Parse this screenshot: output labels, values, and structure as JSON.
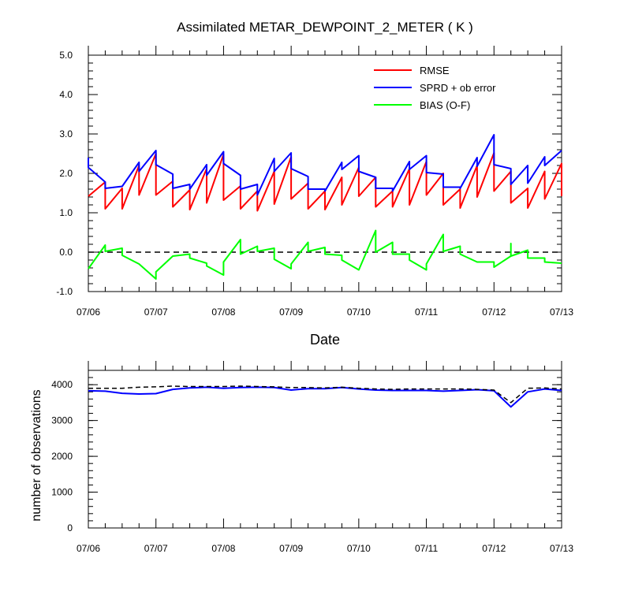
{
  "chart_data": [
    {
      "type": "line",
      "title": "Assimilated METAR_DEWPOINT_2_METER ( K )",
      "xlabel": "Date",
      "ylabel": "",
      "x_tick_labels": [
        "07/06",
        "07/07",
        "07/08",
        "07/09",
        "07/10",
        "07/11",
        "07/12",
        "07/13"
      ],
      "xlim": [
        0,
        7
      ],
      "ylim": [
        -1.0,
        5.0
      ],
      "y_tick_labels": [
        "-1.0",
        "0.0",
        "1.0",
        "2.0",
        "3.0",
        "4.0",
        "5.0"
      ],
      "reference_line": 0.0,
      "legend_position": "top-right",
      "series": [
        {
          "name": "RMSE",
          "color": "#ff0000",
          "points": [
            [
              0.0,
              1.42
            ],
            [
              0.25,
              1.78
            ],
            [
              0.25,
              1.1
            ],
            [
              0.5,
              1.62
            ],
            [
              0.5,
              1.1
            ],
            [
              0.75,
              2.2
            ],
            [
              0.75,
              1.45
            ],
            [
              1.0,
              2.5
            ],
            [
              1.0,
              1.45
            ],
            [
              1.25,
              1.8
            ],
            [
              1.25,
              1.15
            ],
            [
              1.5,
              1.58
            ],
            [
              1.5,
              1.08
            ],
            [
              1.75,
              2.12
            ],
            [
              1.75,
              1.25
            ],
            [
              2.0,
              2.48
            ],
            [
              2.0,
              1.32
            ],
            [
              2.25,
              1.68
            ],
            [
              2.25,
              1.1
            ],
            [
              2.5,
              1.55
            ],
            [
              2.5,
              1.05
            ],
            [
              2.75,
              2.05
            ],
            [
              2.75,
              1.22
            ],
            [
              3.0,
              2.42
            ],
            [
              3.0,
              1.35
            ],
            [
              3.25,
              1.75
            ],
            [
              3.25,
              1.1
            ],
            [
              3.5,
              1.55
            ],
            [
              3.5,
              1.08
            ],
            [
              3.75,
              1.9
            ],
            [
              3.75,
              1.2
            ],
            [
              4.0,
              2.15
            ],
            [
              4.0,
              1.42
            ],
            [
              4.25,
              1.9
            ],
            [
              4.25,
              1.15
            ],
            [
              4.5,
              1.55
            ],
            [
              4.5,
              1.15
            ],
            [
              4.75,
              2.12
            ],
            [
              4.75,
              1.2
            ],
            [
              5.0,
              2.3
            ],
            [
              5.0,
              1.45
            ],
            [
              5.25,
              2.0
            ],
            [
              5.25,
              1.2
            ],
            [
              5.5,
              1.6
            ],
            [
              5.5,
              1.12
            ],
            [
              5.75,
              2.2
            ],
            [
              5.75,
              1.4
            ],
            [
              6.0,
              2.52
            ],
            [
              6.0,
              1.55
            ],
            [
              6.25,
              2.05
            ],
            [
              6.25,
              1.25
            ],
            [
              6.5,
              1.62
            ],
            [
              6.5,
              1.12
            ],
            [
              6.75,
              2.05
            ],
            [
              6.75,
              1.35
            ],
            [
              7.0,
              2.25
            ],
            [
              7.0,
              1.42
            ]
          ]
        },
        {
          "name": "SPRD + ob error",
          "color": "#0000ff",
          "points": [
            [
              0.0,
              2.4
            ],
            [
              0.0,
              2.15
            ],
            [
              0.25,
              1.78
            ],
            [
              0.25,
              1.62
            ],
            [
              0.5,
              1.67
            ],
            [
              0.75,
              2.28
            ],
            [
              0.75,
              2.05
            ],
            [
              1.0,
              2.58
            ],
            [
              1.0,
              2.22
            ],
            [
              1.25,
              1.98
            ],
            [
              1.25,
              1.62
            ],
            [
              1.5,
              1.72
            ],
            [
              1.5,
              1.6
            ],
            [
              1.75,
              2.22
            ],
            [
              1.75,
              1.95
            ],
            [
              2.0,
              2.55
            ],
            [
              2.0,
              2.25
            ],
            [
              2.25,
              1.95
            ],
            [
              2.25,
              1.6
            ],
            [
              2.5,
              1.72
            ],
            [
              2.5,
              1.45
            ],
            [
              2.75,
              2.38
            ],
            [
              2.75,
              2.05
            ],
            [
              3.0,
              2.52
            ],
            [
              3.0,
              2.12
            ],
            [
              3.25,
              1.92
            ],
            [
              3.25,
              1.6
            ],
            [
              3.5,
              1.6
            ],
            [
              3.5,
              1.55
            ],
            [
              3.75,
              2.28
            ],
            [
              3.75,
              2.1
            ],
            [
              4.0,
              2.45
            ],
            [
              4.0,
              2.05
            ],
            [
              4.25,
              1.9
            ],
            [
              4.25,
              1.62
            ],
            [
              4.5,
              1.62
            ],
            [
              4.5,
              1.55
            ],
            [
              4.75,
              2.3
            ],
            [
              4.75,
              2.1
            ],
            [
              5.0,
              2.45
            ],
            [
              5.0,
              2.02
            ],
            [
              5.25,
              1.98
            ],
            [
              5.25,
              1.65
            ],
            [
              5.5,
              1.65
            ],
            [
              5.5,
              1.62
            ],
            [
              5.75,
              2.4
            ],
            [
              5.75,
              2.18
            ],
            [
              6.0,
              2.98
            ],
            [
              6.0,
              2.22
            ],
            [
              6.25,
              2.12
            ],
            [
              6.25,
              1.72
            ],
            [
              6.5,
              2.2
            ],
            [
              6.5,
              1.75
            ],
            [
              6.75,
              2.42
            ],
            [
              6.75,
              2.2
            ],
            [
              7.0,
              2.58
            ]
          ]
        },
        {
          "name": "BIAS (O-F)",
          "color": "#00ff00",
          "points": [
            [
              0.0,
              -0.42
            ],
            [
              0.25,
              0.18
            ],
            [
              0.25,
              0.02
            ],
            [
              0.5,
              0.1
            ],
            [
              0.5,
              -0.08
            ],
            [
              0.75,
              -0.3
            ],
            [
              1.0,
              -0.68
            ],
            [
              1.0,
              -0.5
            ],
            [
              1.25,
              -0.1
            ],
            [
              1.5,
              -0.05
            ],
            [
              1.5,
              -0.15
            ],
            [
              1.75,
              -0.28
            ],
            [
              1.75,
              -0.35
            ],
            [
              2.0,
              -0.58
            ],
            [
              2.0,
              -0.25
            ],
            [
              2.25,
              0.32
            ],
            [
              2.25,
              -0.05
            ],
            [
              2.5,
              0.15
            ],
            [
              2.5,
              0.02
            ],
            [
              2.75,
              0.1
            ],
            [
              2.75,
              -0.18
            ],
            [
              3.0,
              -0.42
            ],
            [
              3.0,
              -0.3
            ],
            [
              3.25,
              0.25
            ],
            [
              3.25,
              0.02
            ],
            [
              3.5,
              0.12
            ],
            [
              3.5,
              -0.05
            ],
            [
              3.75,
              -0.08
            ],
            [
              3.75,
              -0.2
            ],
            [
              4.0,
              -0.45
            ],
            [
              4.25,
              0.55
            ],
            [
              4.25,
              0.0
            ],
            [
              4.5,
              0.25
            ],
            [
              4.5,
              -0.05
            ],
            [
              4.75,
              -0.05
            ],
            [
              4.75,
              -0.2
            ],
            [
              5.0,
              -0.45
            ],
            [
              5.0,
              -0.3
            ],
            [
              5.25,
              0.45
            ],
            [
              5.25,
              0.02
            ],
            [
              5.5,
              0.15
            ],
            [
              5.5,
              -0.05
            ],
            [
              5.75,
              -0.25
            ],
            [
              6.0,
              -0.25
            ],
            [
              6.0,
              -0.38
            ],
            [
              6.25,
              -0.1
            ],
            [
              6.25,
              0.22
            ],
            [
              6.25,
              -0.1
            ],
            [
              6.5,
              0.05
            ],
            [
              6.5,
              -0.15
            ],
            [
              6.75,
              -0.15
            ],
            [
              6.75,
              -0.25
            ],
            [
              7.0,
              -0.28
            ]
          ]
        }
      ]
    },
    {
      "type": "line",
      "title": "",
      "xlabel": "",
      "ylabel": "number of observations",
      "x_tick_labels": [
        "07/06",
        "07/07",
        "07/08",
        "07/09",
        "07/10",
        "07/11",
        "07/12",
        "07/13"
      ],
      "xlim": [
        0,
        7
      ],
      "ylim": [
        0,
        4400
      ],
      "y_tick_labels": [
        "0",
        "1000",
        "2000",
        "3000",
        "4000"
      ],
      "series": [
        {
          "name": "",
          "color": "#0000ff",
          "dash": "solid",
          "points": [
            [
              0.0,
              3830
            ],
            [
              0.25,
              3820
            ],
            [
              0.5,
              3760
            ],
            [
              0.75,
              3740
            ],
            [
              1.0,
              3750
            ],
            [
              1.25,
              3870
            ],
            [
              1.5,
              3910
            ],
            [
              1.75,
              3930
            ],
            [
              2.0,
              3900
            ],
            [
              2.25,
              3920
            ],
            [
              2.5,
              3930
            ],
            [
              2.75,
              3920
            ],
            [
              3.0,
              3850
            ],
            [
              3.25,
              3890
            ],
            [
              3.5,
              3890
            ],
            [
              3.75,
              3920
            ],
            [
              4.0,
              3880
            ],
            [
              4.25,
              3850
            ],
            [
              4.5,
              3840
            ],
            [
              4.75,
              3840
            ],
            [
              5.0,
              3840
            ],
            [
              5.25,
              3820
            ],
            [
              5.5,
              3840
            ],
            [
              5.75,
              3860
            ],
            [
              6.0,
              3830
            ],
            [
              6.25,
              3380
            ],
            [
              6.5,
              3800
            ],
            [
              6.75,
              3880
            ],
            [
              7.0,
              3840
            ]
          ]
        },
        {
          "name": "",
          "color": "#000000",
          "dash": "dashed",
          "points": [
            [
              0.0,
              3900
            ],
            [
              0.25,
              3900
            ],
            [
              0.5,
              3900
            ],
            [
              0.75,
              3930
            ],
            [
              1.0,
              3940
            ],
            [
              1.25,
              3960
            ],
            [
              1.5,
              3950
            ],
            [
              1.75,
              3950
            ],
            [
              2.0,
              3950
            ],
            [
              2.25,
              3960
            ],
            [
              2.5,
              3950
            ],
            [
              2.75,
              3940
            ],
            [
              3.0,
              3920
            ],
            [
              3.25,
              3920
            ],
            [
              3.5,
              3910
            ],
            [
              3.75,
              3930
            ],
            [
              4.0,
              3900
            ],
            [
              4.25,
              3880
            ],
            [
              4.5,
              3870
            ],
            [
              4.75,
              3880
            ],
            [
              5.0,
              3880
            ],
            [
              5.25,
              3880
            ],
            [
              5.5,
              3880
            ],
            [
              5.75,
              3870
            ],
            [
              6.0,
              3850
            ],
            [
              6.25,
              3500
            ],
            [
              6.5,
              3900
            ],
            [
              6.75,
              3910
            ],
            [
              7.0,
              3880
            ]
          ]
        }
      ]
    }
  ]
}
